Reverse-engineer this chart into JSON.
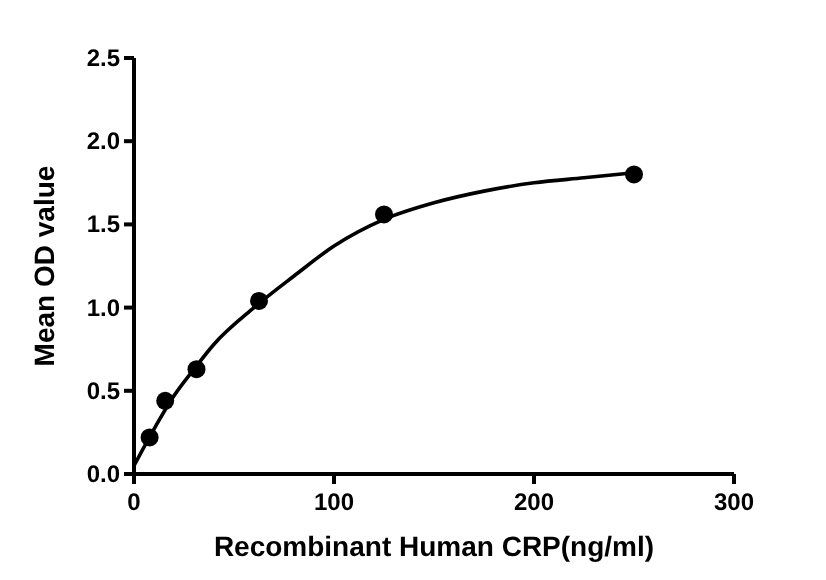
{
  "chart_data": {
    "type": "scatter",
    "xlabel": "Recombinant Human CRP(ng/ml)",
    "ylabel": "Mean OD value",
    "xlim": [
      0,
      300
    ],
    "xticks": [
      0,
      100,
      200,
      300
    ],
    "ylim": [
      0,
      2.5
    ],
    "yticks": [
      {
        "value": 0,
        "label": "0.0"
      },
      0.5,
      {
        "value": 1,
        "label": "1.0"
      },
      1.5,
      {
        "value": 2,
        "label": "2.0"
      },
      2.5
    ],
    "grid": false,
    "series": [
      {
        "color": "#000000",
        "marker": "circle",
        "x": [
          7.8,
          15.6,
          31.25,
          62.5,
          125,
          250
        ],
        "values": [
          0.22,
          0.44,
          0.63,
          1.04,
          1.56,
          1.8
        ]
      },
      {
        "type": "line",
        "color": "#000000",
        "line_style": "solid",
        "x": [
          0,
          10,
          20,
          30,
          40,
          60,
          80,
          100,
          125,
          150,
          175,
          200,
          225,
          250
        ],
        "values": [
          0.05,
          0.27,
          0.47,
          0.63,
          0.78,
          1.0,
          1.19,
          1.37,
          1.53,
          1.63,
          1.7,
          1.75,
          1.78,
          1.81
        ]
      }
    ]
  }
}
